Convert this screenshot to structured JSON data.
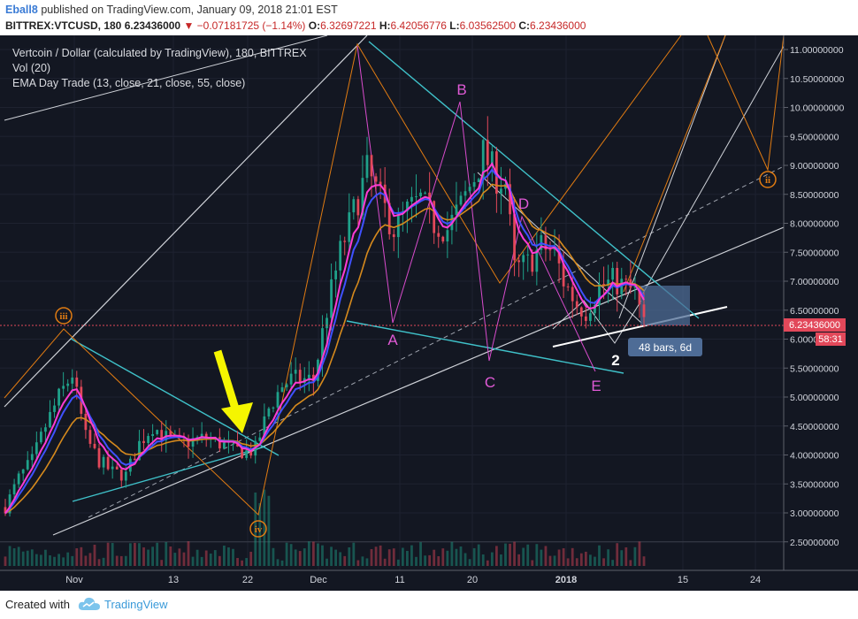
{
  "header": {
    "publisher": "Eball8",
    "published_text": "published on TradingView.com, January 09, 2018 21:01 EST",
    "symbol": "BITTREX:VTCUSD, 180",
    "last": "6.23436000",
    "change": "▼ −0.07181725 (−1.14%)",
    "open_label": "O:",
    "open": "6.32697221",
    "high_label": "H:",
    "high": "6.42056776",
    "low_label": "L:",
    "low": "6.03562500",
    "close_label": "C:",
    "close": "6.23436000"
  },
  "legend": {
    "title": "Vertcoin / Dollar (calculated by TradingView), 180, BITTREX",
    "vol": "Vol (20)",
    "ema": "EMA Day Trade (13, close, 21, close, 55, close)"
  },
  "footer": {
    "created_with": "Created with",
    "brand": "TradingView"
  },
  "colors": {
    "background": "#131722",
    "candle_up": "#1fa18a",
    "candle_down": "#e2485a",
    "ema13": "#ff3bd4",
    "ema21": "#3f51ff",
    "ema55": "#d68a1d",
    "trendline_cyan": "#3fc1c9",
    "wave_orange": "#e07b12",
    "wave_magenta": "#d94ccd",
    "arrow_yellow": "#f5f500",
    "price_tag": "#e2485a"
  },
  "chart_data": {
    "type": "candlestick",
    "symbol": "BITTREX:VTCUSD",
    "interval": "180",
    "ylim": [
      2.1,
      11.2
    ],
    "y_ticks": [
      {
        "value": 11.0,
        "label": "11.00000000"
      },
      {
        "value": 10.5,
        "label": "10.50000000"
      },
      {
        "value": 10.0,
        "label": "10.00000000"
      },
      {
        "value": 9.5,
        "label": "9.50000000"
      },
      {
        "value": 9.0,
        "label": "9.00000000"
      },
      {
        "value": 8.5,
        "label": "8.50000000"
      },
      {
        "value": 8.0,
        "label": "8.00000000"
      },
      {
        "value": 7.5,
        "label": "7.50000000"
      },
      {
        "value": 7.0,
        "label": "7.00000000"
      },
      {
        "value": 6.5,
        "label": "6.50000000"
      },
      {
        "value": 6.0,
        "label": "6.00000000"
      },
      {
        "value": 5.5,
        "label": "5.50000000"
      },
      {
        "value": 5.0,
        "label": "5.00000000"
      },
      {
        "value": 4.5,
        "label": "4.50000000"
      },
      {
        "value": 4.0,
        "label": "4.00000000"
      },
      {
        "value": 3.5,
        "label": "3.50000000"
      },
      {
        "value": 3.0,
        "label": "3.00000000"
      },
      {
        "value": 2.5,
        "label": "2.50000000"
      }
    ],
    "x_ticks": [
      "Nov",
      "13",
      "22",
      "Dec",
      "11",
      "20",
      "2018",
      "15",
      "24"
    ],
    "last_price": {
      "value": 6.23436,
      "label": "6.23436000",
      "countdown": "58:31"
    },
    "measure_label": "48 bars, 6d",
    "wave_labels": {
      "orange": [
        "iii",
        "iv",
        "ii"
      ],
      "magenta": [
        "A",
        "B",
        "C",
        "D",
        "E"
      ],
      "white": [
        "2"
      ]
    },
    "price_path": [
      [
        0,
        3.1
      ],
      [
        3,
        3.6
      ],
      [
        6,
        3.9
      ],
      [
        9,
        4.5
      ],
      [
        12,
        5.0
      ],
      [
        15,
        5.4
      ],
      [
        18,
        4.3
      ],
      [
        21,
        3.9
      ],
      [
        24,
        3.7
      ],
      [
        27,
        3.65
      ],
      [
        30,
        4.2
      ],
      [
        33,
        4.5
      ],
      [
        36,
        4.3
      ],
      [
        39,
        4.2
      ],
      [
        42,
        4.25
      ],
      [
        45,
        4.3
      ],
      [
        48,
        4.2
      ],
      [
        51,
        4.1
      ],
      [
        54,
        4.05
      ],
      [
        56,
        4.1
      ],
      [
        59,
        4.8
      ],
      [
        62,
        5.2
      ],
      [
        64,
        5.3
      ],
      [
        67,
        5.3
      ],
      [
        69,
        5.3
      ],
      [
        72,
        6.5
      ],
      [
        75,
        7.5
      ],
      [
        78,
        8.2
      ],
      [
        81,
        8.9
      ],
      [
        84,
        8.4
      ],
      [
        87,
        7.9
      ],
      [
        90,
        8.2
      ],
      [
        93,
        8.4
      ],
      [
        96,
        8.0
      ],
      [
        99,
        7.9
      ],
      [
        102,
        8.3
      ],
      [
        105,
        8.8
      ],
      [
        107,
        9.2
      ],
      [
        110,
        8.8
      ],
      [
        112,
        8.7
      ],
      [
        114,
        7.2
      ],
      [
        117,
        7.3
      ],
      [
        120,
        7.6
      ],
      [
        123,
        7.5
      ],
      [
        125,
        7.0
      ],
      [
        128,
        6.6
      ],
      [
        130,
        6.5
      ],
      [
        133,
        6.9
      ],
      [
        136,
        7.0
      ],
      [
        139,
        6.9
      ],
      [
        141,
        6.8
      ],
      [
        143,
        6.23
      ]
    ]
  }
}
